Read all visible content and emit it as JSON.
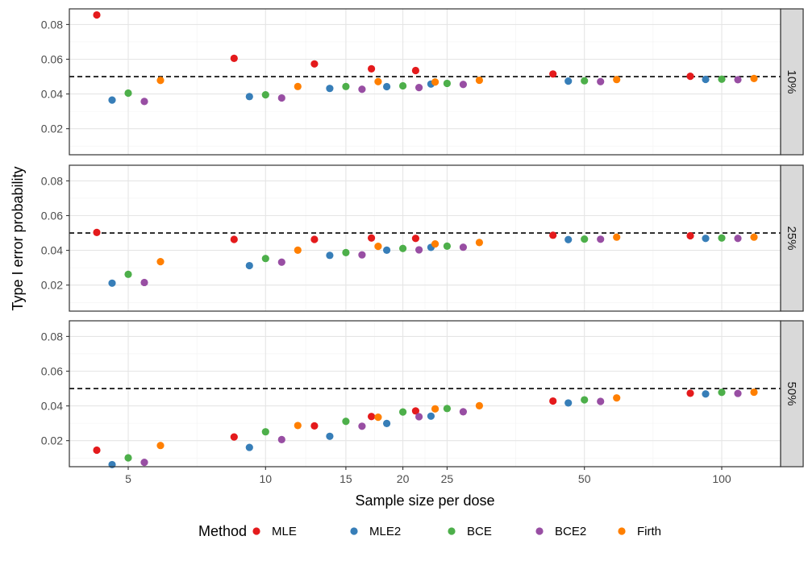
{
  "chart_data": {
    "type": "scatter",
    "facet_type": "rows",
    "xlabel": "Sample size per dose",
    "ylabel": "Type I error probability",
    "x_scale": "log",
    "x_categories": [
      5,
      10,
      15,
      20,
      25,
      50,
      100
    ],
    "x_ticks": [
      5,
      10,
      15,
      20,
      25,
      50,
      100
    ],
    "y_ticks": [
      0.02,
      0.04,
      0.06,
      0.08
    ],
    "y_tick_labels": [
      "0.02",
      "0.04",
      "0.06",
      "0.08"
    ],
    "ylim": [
      0.005,
      0.089
    ],
    "reference_line": {
      "y": 0.05,
      "style": "dashed"
    },
    "grid": true,
    "legend": {
      "title": "Method",
      "position": "bottom"
    },
    "series_colors": {
      "MLE": "#e41a1c",
      "MLE2": "#377eb8",
      "BCE": "#4daf4a",
      "BCE2": "#984ea3",
      "Firth": "#ff7f00"
    },
    "series_order": [
      "MLE",
      "MLE2",
      "BCE",
      "BCE2",
      "Firth"
    ],
    "panels": [
      {
        "label": "10%",
        "series": [
          {
            "name": "MLE",
            "values": [
              0.0855,
              0.0605,
              0.0573,
              0.0545,
              0.0535,
              0.0515,
              0.0502
            ]
          },
          {
            "name": "MLE2",
            "values": [
              0.0365,
              0.0385,
              0.0432,
              0.0442,
              0.0457,
              0.0474,
              0.0484
            ]
          },
          {
            "name": "BCE",
            "values": [
              0.0405,
              0.0395,
              0.0443,
              0.0447,
              0.0461,
              0.0476,
              0.0485
            ]
          },
          {
            "name": "BCE2",
            "values": [
              0.0357,
              0.0377,
              0.0427,
              0.0437,
              0.0455,
              0.0471,
              0.0482
            ]
          },
          {
            "name": "Firth",
            "values": [
              0.0478,
              0.0443,
              0.0471,
              0.0469,
              0.0479,
              0.0483,
              0.0489
            ]
          }
        ]
      },
      {
        "label": "25%",
        "series": [
          {
            "name": "MLE",
            "values": [
              0.0503,
              0.0463,
              0.0463,
              0.0471,
              0.0469,
              0.0487,
              0.0484
            ]
          },
          {
            "name": "MLE2",
            "values": [
              0.0211,
              0.0312,
              0.0371,
              0.0401,
              0.0417,
              0.0462,
              0.0469
            ]
          },
          {
            "name": "BCE",
            "values": [
              0.0262,
              0.0353,
              0.0387,
              0.0411,
              0.0424,
              0.0465,
              0.0471
            ]
          },
          {
            "name": "BCE2",
            "values": [
              0.0215,
              0.0332,
              0.0374,
              0.0403,
              0.0418,
              0.0464,
              0.0469
            ]
          },
          {
            "name": "Firth",
            "values": [
              0.0335,
              0.0401,
              0.0423,
              0.0437,
              0.0445,
              0.0476,
              0.0476
            ]
          }
        ]
      },
      {
        "label": "50%",
        "series": [
          {
            "name": "MLE",
            "values": [
              0.0145,
              0.0221,
              0.0285,
              0.0339,
              0.0371,
              0.0428,
              0.0473
            ]
          },
          {
            "name": "MLE2",
            "values": [
              0.0062,
              0.0161,
              0.0225,
              0.0299,
              0.0341,
              0.0417,
              0.0469
            ]
          },
          {
            "name": "BCE",
            "values": [
              0.0101,
              0.0251,
              0.0311,
              0.0365,
              0.0385,
              0.0435,
              0.0478
            ]
          },
          {
            "name": "BCE2",
            "values": [
              0.0075,
              0.0206,
              0.0283,
              0.0338,
              0.0366,
              0.0426,
              0.0472
            ]
          },
          {
            "name": "Firth",
            "values": [
              0.0172,
              0.0287,
              0.0335,
              0.0383,
              0.0401,
              0.0446,
              0.0479
            ]
          }
        ]
      }
    ]
  }
}
